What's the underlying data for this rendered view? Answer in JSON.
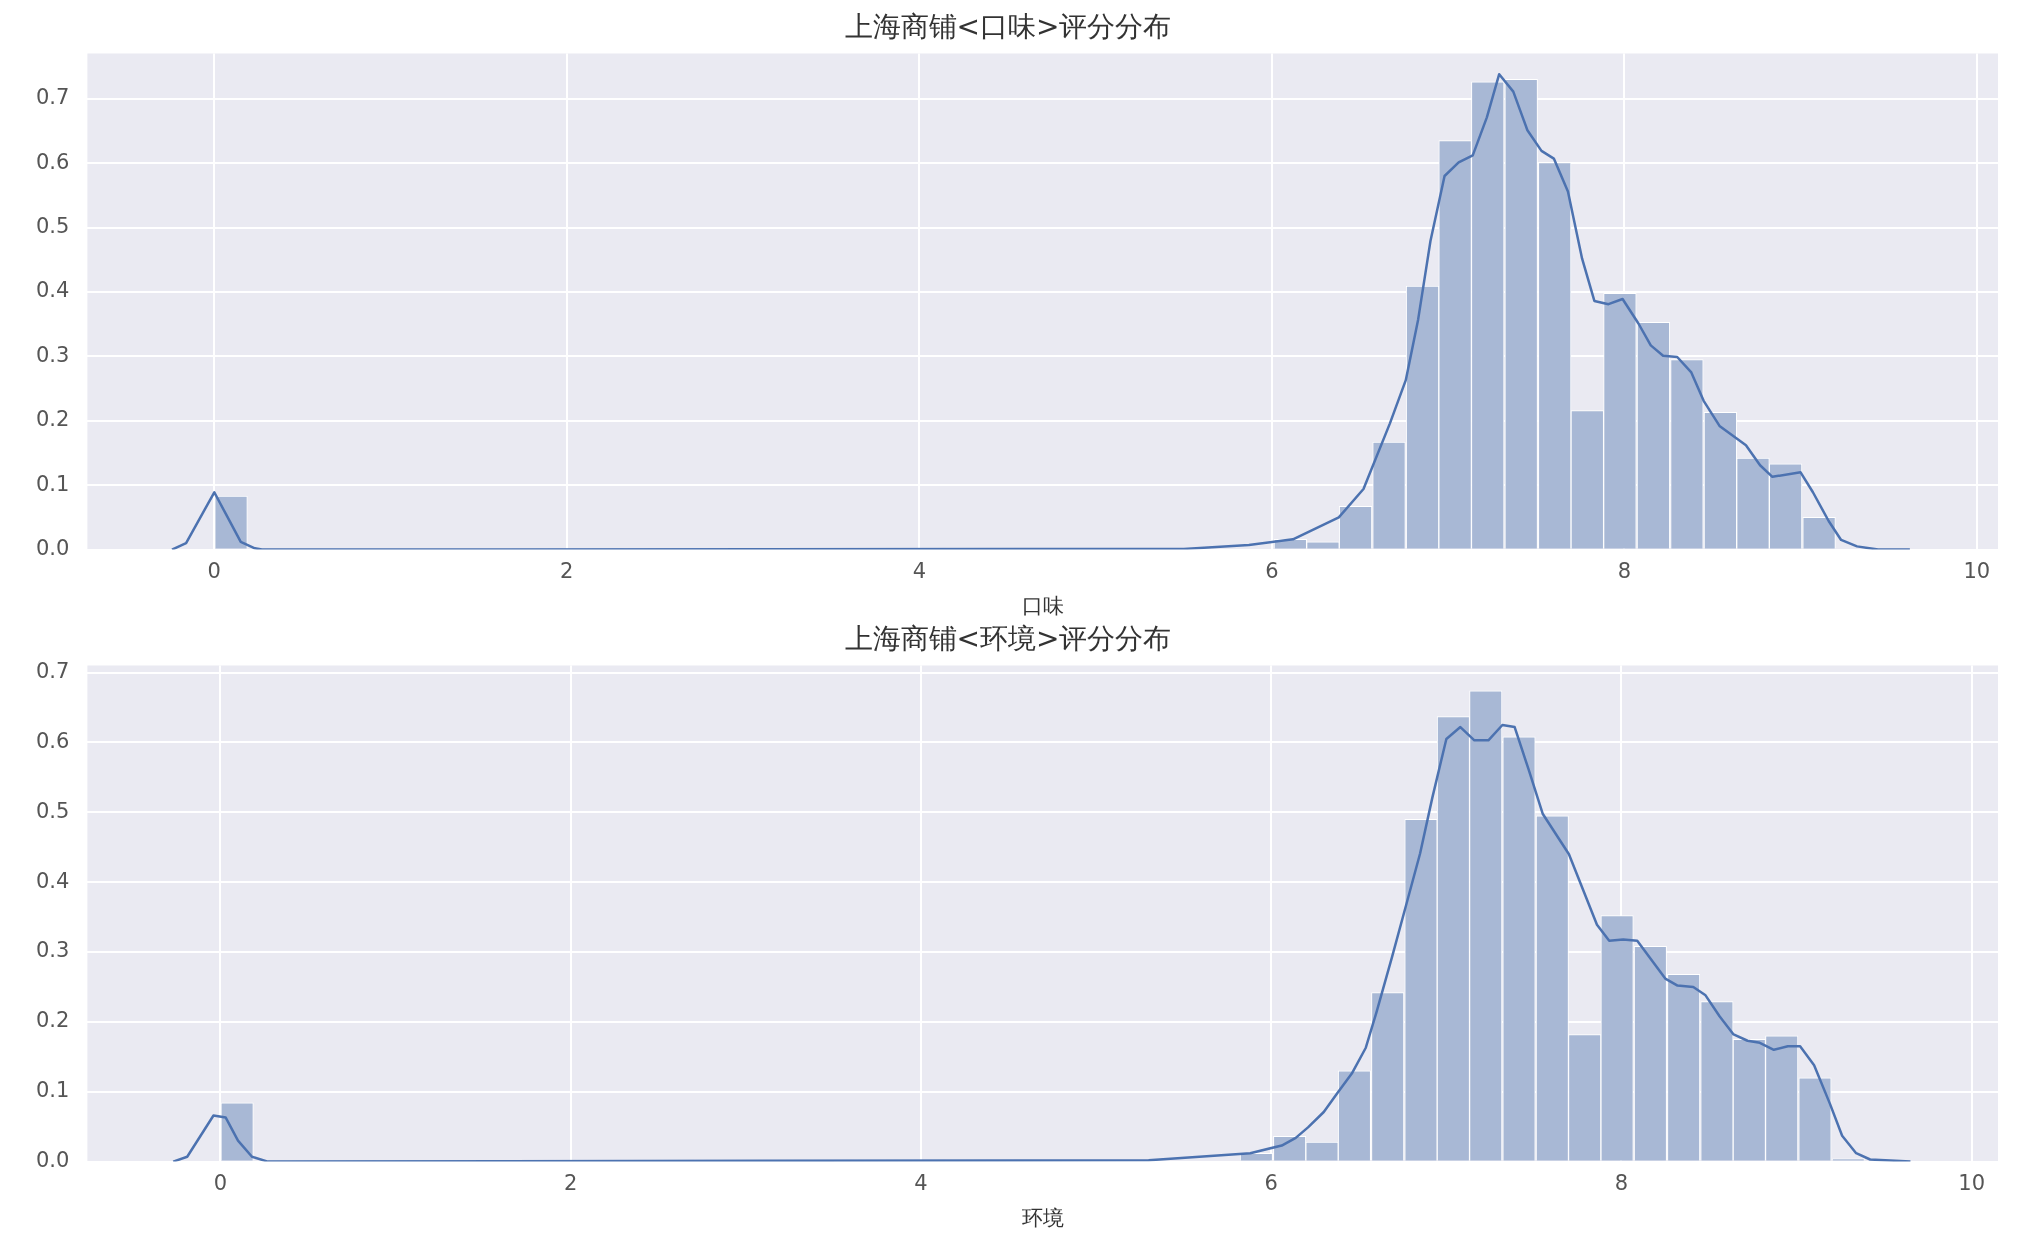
{
  "chart_data": [
    {
      "type": "histogram",
      "title": "上海商铺<口味>评分分布",
      "xlabel": "口味",
      "color": "#a8b8d5",
      "grid": true,
      "bins": [
        0,
        0.19,
        0.38,
        0.56,
        0.75,
        0.94,
        1.13,
        1.31,
        1.5,
        1.69,
        1.88,
        2.07,
        2.25,
        2.44,
        2.63,
        2.82,
        3.0,
        3.19,
        3.38,
        3.57,
        3.76,
        3.94,
        4.13,
        4.32,
        4.51,
        4.69,
        4.88,
        5.07,
        5.26,
        5.44,
        5.63,
        5.82,
        6.01,
        6.2,
        6.38,
        6.57,
        6.76,
        6.95,
        7.13,
        7.32,
        7.51,
        7.7,
        7.88,
        8.07,
        8.26,
        8.45,
        8.64,
        8.82,
        9.01,
        9.2
      ],
      "values": [
        0.083,
        0,
        0,
        0,
        0,
        0,
        0,
        0,
        0,
        0,
        0,
        0,
        0,
        0,
        0,
        0,
        0,
        0,
        0,
        0,
        0,
        0,
        0,
        0,
        0,
        0,
        0,
        0,
        0,
        0,
        0,
        0,
        0.016,
        0.012,
        0.067,
        0.167,
        0.409,
        0.635,
        0.726,
        0.73,
        0.601,
        0.216,
        0.398,
        0.353,
        0.295,
        0.213,
        0.142,
        0.133,
        0.05
      ],
      "series": [
        {
          "type": "line",
          "color": "#4c72b0",
          "x": [
            -0.24,
            -0.16,
            0,
            0.07,
            0.15,
            0.23,
            0.27,
            5.5,
            5.87,
            6.12,
            6.38,
            6.52,
            6.67,
            6.76,
            6.83,
            6.9,
            6.98,
            7.06,
            7.14,
            7.22,
            7.29,
            7.37,
            7.45,
            7.53,
            7.6,
            7.68,
            7.76,
            7.83,
            7.91,
            7.99,
            8.08,
            8.15,
            8.22,
            8.3,
            8.38,
            8.45,
            8.54,
            8.69,
            8.77,
            8.84,
            9.0,
            9.07,
            9.16,
            9.23,
            9.32,
            9.44,
            9.62
          ],
          "values": [
            0,
            0.01,
            0.089,
            0.053,
            0.012,
            0.002,
            0,
            0.001,
            0.007,
            0.016,
            0.05,
            0.094,
            0.196,
            0.263,
            0.357,
            0.479,
            0.58,
            0.601,
            0.612,
            0.671,
            0.738,
            0.711,
            0.651,
            0.619,
            0.607,
            0.556,
            0.452,
            0.386,
            0.381,
            0.389,
            0.351,
            0.317,
            0.301,
            0.299,
            0.275,
            0.231,
            0.192,
            0.162,
            0.131,
            0.113,
            0.12,
            0.089,
            0.044,
            0.015,
            0.005,
            0,
            0
          ]
        }
      ],
      "xlim": [
        -0.72,
        10.12
      ],
      "xticks": [
        0,
        2,
        4,
        6,
        8,
        10
      ],
      "ylim": [
        0,
        0.77
      ],
      "yticks": [
        {
          "value": 0,
          "label": "0.0"
        },
        {
          "value": 0.1,
          "label": "0.1"
        },
        {
          "value": 0.2,
          "label": "0.2"
        },
        {
          "value": 0.3,
          "label": "0.3"
        },
        {
          "value": 0.4,
          "label": "0.4"
        },
        {
          "value": 0.5,
          "label": "0.5"
        },
        {
          "value": 0.6,
          "label": "0.6"
        },
        {
          "value": 0.7,
          "label": "0.7"
        }
      ]
    },
    {
      "type": "histogram",
      "title": "上海商铺<环境>评分分布",
      "xlabel": "环境",
      "color": "#a8b8d5",
      "grid": true,
      "bins": [
        0,
        0.19,
        0.38,
        0.56,
        0.75,
        0.94,
        1.13,
        1.31,
        1.5,
        1.69,
        1.88,
        2.07,
        2.25,
        2.44,
        2.63,
        2.82,
        3.0,
        3.19,
        3.38,
        3.57,
        3.76,
        3.94,
        4.13,
        4.32,
        4.51,
        4.69,
        4.88,
        5.07,
        5.26,
        5.44,
        5.63,
        5.82,
        6.01,
        6.2,
        6.38,
        6.57,
        6.76,
        6.95,
        7.13,
        7.32,
        7.51,
        7.7,
        7.88,
        8.07,
        8.26,
        8.45,
        8.64,
        8.82,
        9.01,
        9.2,
        9.39
      ],
      "values": [
        0.084,
        0,
        0,
        0,
        0,
        0,
        0,
        0,
        0,
        0,
        0,
        0,
        0,
        0,
        0,
        0,
        0,
        0,
        0,
        0,
        0,
        0,
        0,
        0,
        0,
        0,
        0,
        0,
        0,
        0,
        0,
        0.012,
        0.036,
        0.028,
        0.13,
        0.242,
        0.49,
        0.637,
        0.674,
        0.608,
        0.495,
        0.182,
        0.352,
        0.308,
        0.268,
        0.229,
        0.175,
        0.18,
        0.12,
        0.004
      ],
      "series": [
        {
          "type": "line",
          "color": "#4c72b0",
          "x": [
            -0.27,
            -0.19,
            -0.04,
            0.03,
            0.1,
            0.18,
            0.27,
            5.3,
            5.88,
            6.06,
            6.14,
            6.21,
            6.3,
            6.38,
            6.46,
            6.54,
            6.6,
            6.69,
            6.77,
            6.85,
            6.92,
            7.0,
            7.08,
            7.16,
            7.24,
            7.32,
            7.39,
            7.47,
            7.55,
            7.7,
            7.86,
            7.93,
            8.01,
            8.09,
            8.25,
            8.32,
            8.41,
            8.48,
            8.56,
            8.64,
            8.72,
            8.79,
            8.87,
            8.95,
            9.02,
            9.1,
            9.19,
            9.26,
            9.34,
            9.42,
            9.65
          ],
          "values": [
            0,
            0.007,
            0.066,
            0.063,
            0.03,
            0.007,
            0,
            0.002,
            0.012,
            0.023,
            0.034,
            0.049,
            0.071,
            0.099,
            0.126,
            0.163,
            0.213,
            0.293,
            0.367,
            0.441,
            0.521,
            0.605,
            0.622,
            0.603,
            0.603,
            0.625,
            0.622,
            0.561,
            0.498,
            0.44,
            0.339,
            0.316,
            0.318,
            0.316,
            0.262,
            0.252,
            0.25,
            0.238,
            0.208,
            0.182,
            0.173,
            0.17,
            0.16,
            0.165,
            0.165,
            0.138,
            0.083,
            0.037,
            0.012,
            0.003,
            0
          ]
        }
      ],
      "xlim": [
        -0.76,
        10.15
      ],
      "xticks": [
        0,
        2,
        4,
        6,
        8,
        10
      ],
      "ylim": [
        0,
        0.71
      ],
      "yticks": [
        {
          "value": 0,
          "label": "0.0"
        },
        {
          "value": 0.1,
          "label": "0.1"
        },
        {
          "value": 0.2,
          "label": "0.2"
        },
        {
          "value": 0.3,
          "label": "0.3"
        },
        {
          "value": 0.4,
          "label": "0.4"
        },
        {
          "value": 0.5,
          "label": "0.5"
        },
        {
          "value": 0.6,
          "label": "0.6"
        },
        {
          "value": 0.7,
          "label": "0.7"
        }
      ]
    }
  ]
}
